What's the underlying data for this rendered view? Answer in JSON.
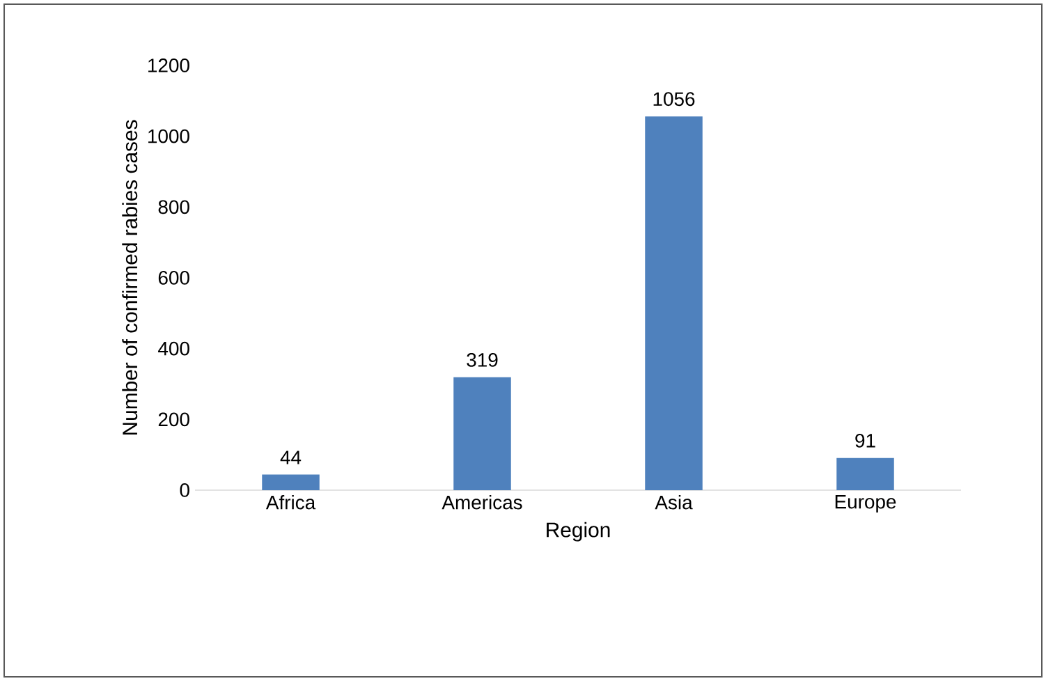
{
  "chart_data": {
    "type": "bar",
    "xlabel": "Region",
    "ylabel": "Number of confirmed rabies cases",
    "categories": [
      "Africa",
      "Americas",
      "Asia",
      "Europe"
    ],
    "values": [
      44,
      319,
      1056,
      91
    ],
    "color": "#4f81bd",
    "ylim": [
      0,
      1200
    ],
    "yticks": [
      0,
      200,
      400,
      600,
      800,
      1000,
      1200
    ],
    "data_labels": true
  }
}
